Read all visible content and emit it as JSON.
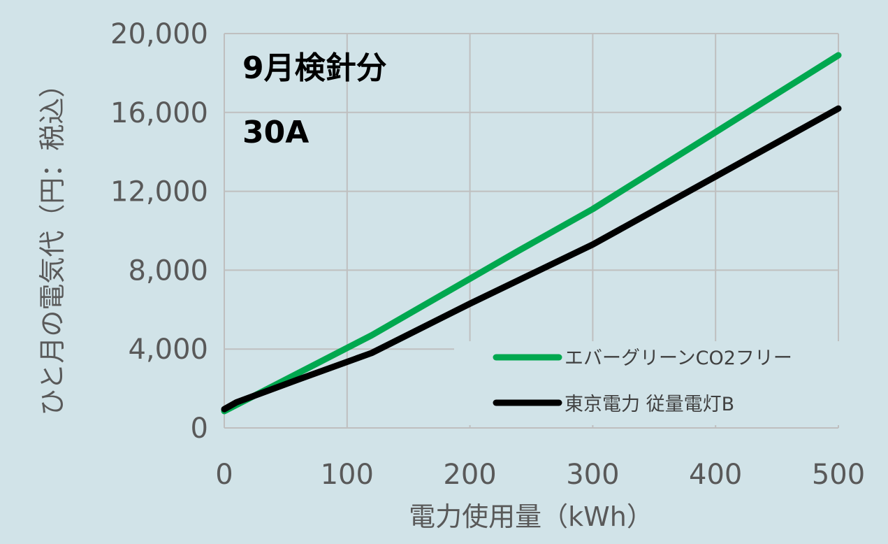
{
  "chart_data": {
    "type": "line",
    "title": "",
    "xlabel": "電力使用量（kWh）",
    "ylabel": "ひと月の電気代（円：税込）",
    "xlim": [
      0,
      500
    ],
    "ylim": [
      0,
      20000
    ],
    "x_ticks": [
      0,
      100,
      200,
      300,
      400,
      500
    ],
    "x_tick_labels": [
      "0",
      "100",
      "200",
      "300",
      "400",
      "500"
    ],
    "y_ticks": [
      0,
      4000,
      8000,
      12000,
      16000,
      20000
    ],
    "y_tick_labels": [
      "0",
      "4,000",
      "8,000",
      "12,000",
      "16,000",
      "20,000"
    ],
    "grid": true,
    "legend_position": "bottom-right",
    "annotations": [
      "9月検針分",
      "30A"
    ],
    "series": [
      {
        "name": "エバーグリーンCO2フリー",
        "color": "#00a84f",
        "x": [
          0,
          120,
          240,
          300,
          400,
          500
        ],
        "y": [
          850,
          4700,
          9000,
          11100,
          15000,
          18900
        ]
      },
      {
        "name": "東京電力 従量電灯B",
        "color": "#000000",
        "x": [
          0,
          10,
          60,
          120,
          200,
          300,
          400,
          500
        ],
        "y": [
          950,
          1300,
          2450,
          3800,
          6300,
          9300,
          12750,
          16200
        ]
      }
    ]
  }
}
